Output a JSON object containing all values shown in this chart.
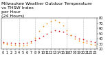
{
  "title_line1": "Milwaukee Weather Outdoor Temperature",
  "title_line2": "vs THSW Index",
  "title_line3": "per Hour",
  "title_line4": "(24 Hours)",
  "temp_data": {
    "hours": [
      0,
      1,
      2,
      3,
      4,
      5,
      6,
      7,
      8,
      9,
      10,
      11,
      12,
      13,
      14,
      15,
      16,
      17,
      18,
      19,
      20,
      21,
      22,
      23
    ],
    "values": [
      34,
      33,
      32,
      31,
      31,
      31,
      32,
      35,
      38,
      42,
      46,
      50,
      54,
      56,
      55,
      53,
      50,
      47,
      44,
      41,
      39,
      37,
      35,
      34
    ]
  },
  "thsw_data": {
    "hours": [
      0,
      1,
      2,
      3,
      4,
      5,
      6,
      7,
      8,
      9,
      10,
      11,
      12,
      13,
      14,
      15,
      16,
      17,
      18,
      19,
      20,
      21,
      22,
      23
    ],
    "values": [
      31,
      30,
      29,
      28,
      27,
      27,
      28,
      33,
      42,
      55,
      64,
      70,
      74,
      76,
      72,
      65,
      56,
      47,
      41,
      37,
      34,
      32,
      30,
      29
    ]
  },
  "temp_color": "#cc0000",
  "thsw_color": "#ff8800",
  "background_color": "#ffffff",
  "ylim": [
    20,
    80
  ],
  "xlim": [
    -0.5,
    23.5
  ],
  "yticks": [
    20,
    30,
    40,
    50,
    60,
    70,
    80
  ],
  "ytick_labels": [
    "20",
    "30",
    "40",
    "50",
    "60",
    "70",
    "80"
  ],
  "grid_positions": [
    4,
    8,
    12,
    16,
    20
  ],
  "grid_color": "#bbbbbb",
  "title_fontsize": 4.5,
  "tick_fontsize": 3.5,
  "marker_size": 1.5
}
